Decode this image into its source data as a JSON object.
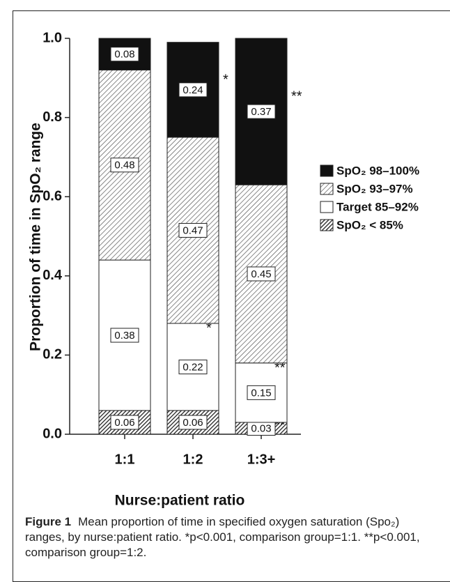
{
  "chart_data": {
    "type": "stacked-bar",
    "ylabel": "Proportion of time in SpO₂ range",
    "xlabel": "Nurse:patient ratio",
    "categories": [
      "1:1",
      "1:2",
      "1:3+"
    ],
    "series": [
      {
        "name": "SpO₂ < 85%",
        "color": "#333333",
        "pattern": "hatch-dense",
        "values": [
          0.06,
          0.06,
          0.03
        ],
        "markers": [
          null,
          null,
          "**"
        ]
      },
      {
        "name": "Target 85–92%",
        "color": "#ffffff",
        "pattern": "none",
        "values": [
          0.38,
          0.22,
          0.15
        ],
        "markers": [
          null,
          "*",
          "**"
        ]
      },
      {
        "name": "SpO₂ 93–97%",
        "color": "#777777",
        "pattern": "hatch-light",
        "values": [
          0.48,
          0.47,
          0.45
        ]
      },
      {
        "name": "SpO₂ 98–100%",
        "color": "#111111",
        "pattern": "solid",
        "values": [
          0.08,
          0.24,
          0.37
        ],
        "markers": [
          null,
          "*",
          "**"
        ]
      }
    ],
    "ylim": [
      0,
      1
    ],
    "yticks": [
      {
        "value": 0,
        "label": "0.0"
      },
      0.2,
      0.4,
      0.6,
      0.8,
      {
        "value": 1,
        "label": "1.0"
      }
    ],
    "grid": false,
    "legend": "right",
    "caption": {
      "label": "Figure 1",
      "text": "Mean proportion of time in specified oxygen saturation (Spo₂) ranges, by nurse:patient ratio. *p<0.001, comparison group=1:1. **p<0.001, comparison group=1:2."
    }
  }
}
